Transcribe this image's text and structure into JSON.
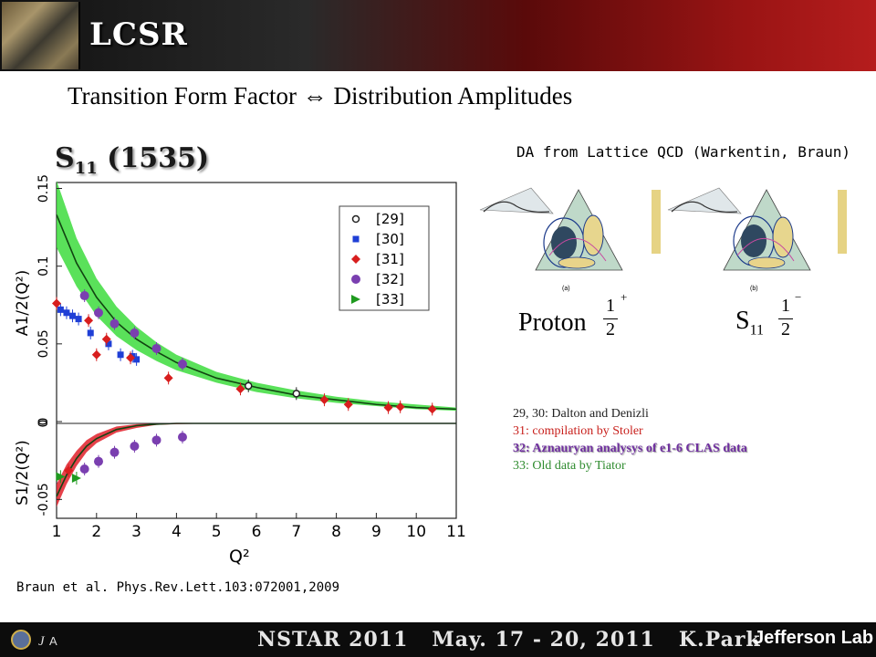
{
  "header": {
    "title": "LCSR"
  },
  "subtitle": "Transition Form Factor ⇔ Distribution Amplitudes",
  "panel_title": {
    "main": "S",
    "sub": "11",
    "rest": " (1535)"
  },
  "lattice": {
    "title": "DA from Lattice QCD (Warkentin, Braun)",
    "panel_a_label": "(a)",
    "panel_b_label": "(b)",
    "proton_label": "Proton",
    "s11_label": {
      "main": "S",
      "sub": "11"
    },
    "spin_num": "1",
    "spin_den": "2",
    "parity_plus": "+",
    "parity_minus": "−"
  },
  "references": [
    {
      "text": "29, 30: Dalton and Denizli",
      "color": "#222222",
      "bold": false
    },
    {
      "text": "31: compilation by Stoler",
      "color": "#c8201c",
      "bold": false
    },
    {
      "text": "32: Aznauryan analysys of e1-6 CLAS data",
      "color": "#7030a0",
      "bold": true
    },
    {
      "text": "33: Old data by Tiator",
      "color": "#2e8b2e",
      "bold": false
    }
  ],
  "citation": "Braun et al. Phys.Rev.Lett.103:072001,2009",
  "footer": {
    "conference": "NSTAR 2011",
    "dates": "May. 17 - 20, 2011",
    "author": "K.Park",
    "lab": "Jefferson Lab"
  },
  "chart_data": {
    "type": "scatter",
    "xlabel": "Q²",
    "xlim": [
      1,
      11
    ],
    "xticks": [
      1,
      2,
      3,
      4,
      5,
      6,
      7,
      8,
      9,
      10,
      11
    ],
    "top": {
      "ylabel": "A1/2(Q²)",
      "ylim": [
        0,
        0.155
      ],
      "yticks": [
        0,
        0.05,
        0.1,
        0.15
      ],
      "ytick_labels": [
        "0",
        "0.05",
        "0.1",
        "0.15"
      ],
      "band": {
        "color": "#3ddc3d",
        "x": [
          1.0,
          1.5,
          2.0,
          2.5,
          3.0,
          3.5,
          4.0,
          5.0,
          6.0,
          7.0,
          8.0,
          9.0,
          10.0,
          11.0
        ],
        "lower": [
          0.112,
          0.087,
          0.068,
          0.055,
          0.046,
          0.039,
          0.033,
          0.025,
          0.019,
          0.015,
          0.012,
          0.01,
          0.008,
          0.007
        ],
        "upper": [
          0.155,
          0.118,
          0.092,
          0.074,
          0.061,
          0.051,
          0.043,
          0.032,
          0.025,
          0.02,
          0.016,
          0.013,
          0.011,
          0.009
        ],
        "center": [
          0.133,
          0.102,
          0.08,
          0.064,
          0.053,
          0.045,
          0.038,
          0.028,
          0.022,
          0.017,
          0.014,
          0.011,
          0.009,
          0.008
        ]
      }
    },
    "bottom": {
      "ylabel": "S1/2(Q²)",
      "ylim": [
        -0.06,
        0.005
      ],
      "yticks": [
        -0.05,
        0
      ],
      "ytick_labels": [
        "-0.05",
        "0"
      ],
      "band": {
        "color": "#e0202a",
        "x": [
          1.0,
          1.25,
          1.5,
          1.75,
          2.0,
          2.5,
          3.0,
          3.5,
          4.0,
          5.0,
          6.0,
          7.0,
          11.0
        ],
        "lower": [
          -0.055,
          -0.04,
          -0.028,
          -0.019,
          -0.013,
          -0.006,
          -0.003,
          -0.001,
          -0.0005,
          0,
          0,
          0,
          0
        ],
        "upper": [
          -0.04,
          -0.027,
          -0.018,
          -0.011,
          -0.007,
          -0.002,
          -0.0005,
          0,
          0,
          0,
          0,
          0,
          0
        ],
        "center": [
          -0.048,
          -0.034,
          -0.023,
          -0.015,
          -0.01,
          -0.004,
          -0.0015,
          -0.0005,
          0,
          0,
          0,
          0,
          0
        ]
      }
    },
    "legend": {
      "position": "top-right",
      "entries": [
        "[29]",
        "[30]",
        "[31]",
        "[32]",
        "[33]"
      ]
    },
    "series": [
      {
        "name": "[29]",
        "marker": "open-circle",
        "color": "#222222",
        "panel": "top",
        "points": [
          [
            5.8,
            0.023
          ],
          [
            7.0,
            0.018
          ]
        ]
      },
      {
        "name": "[30]",
        "marker": "square",
        "color": "#1f3fd6",
        "panel": "top",
        "points": [
          [
            1.1,
            0.072
          ],
          [
            1.25,
            0.07
          ],
          [
            1.4,
            0.068
          ],
          [
            1.55,
            0.066
          ],
          [
            1.85,
            0.057
          ],
          [
            2.3,
            0.05
          ],
          [
            2.6,
            0.043
          ],
          [
            2.9,
            0.042
          ],
          [
            3.0,
            0.04
          ]
        ]
      },
      {
        "name": "[31]",
        "marker": "diamond",
        "color": "#d81e1e",
        "panel": "top",
        "points": [
          [
            1.0,
            0.076
          ],
          [
            1.8,
            0.065
          ],
          [
            2.0,
            0.043
          ],
          [
            2.25,
            0.053
          ],
          [
            2.85,
            0.041
          ],
          [
            3.8,
            0.028
          ],
          [
            5.6,
            0.021
          ],
          [
            7.7,
            0.014
          ],
          [
            8.3,
            0.011
          ],
          [
            9.3,
            0.009
          ],
          [
            9.6,
            0.0095
          ],
          [
            10.4,
            0.008
          ]
        ]
      },
      {
        "name": "[32]",
        "marker": "circle",
        "color": "#7a3fb0",
        "panel": "top",
        "points": [
          [
            1.7,
            0.081
          ],
          [
            2.05,
            0.07
          ],
          [
            2.45,
            0.063
          ],
          [
            2.95,
            0.057
          ],
          [
            3.5,
            0.047
          ],
          [
            4.15,
            0.037
          ]
        ]
      },
      {
        "name": "[32]",
        "marker": "circle",
        "color": "#7a3fb0",
        "panel": "bottom",
        "points": [
          [
            1.7,
            -0.03
          ],
          [
            2.05,
            -0.025
          ],
          [
            2.45,
            -0.019
          ],
          [
            2.95,
            -0.015
          ],
          [
            3.5,
            -0.011
          ],
          [
            4.15,
            -0.009
          ]
        ]
      },
      {
        "name": "[31]",
        "marker": "diamond",
        "color": "#d81e1e",
        "panel": "bottom",
        "points": [
          [
            1.3,
            -0.031
          ]
        ]
      },
      {
        "name": "[33]",
        "marker": "triangle",
        "color": "#1f9a1f",
        "panel": "bottom",
        "points": [
          [
            1.1,
            -0.035
          ],
          [
            1.5,
            -0.036
          ]
        ]
      }
    ]
  }
}
